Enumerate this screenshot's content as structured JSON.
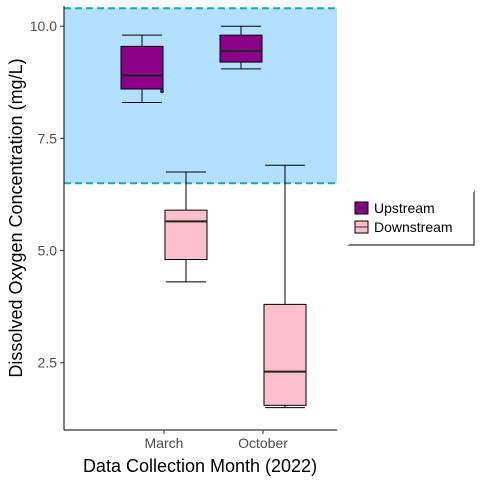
{
  "chart_data": {
    "type": "boxplot",
    "title": "",
    "xlabel": "Data Collection Month (2022)",
    "ylabel": "Dissolved Oxygen Concentration (mg/L)",
    "categories": [
      "March",
      "October"
    ],
    "ylim": [
      1.0,
      10.45
    ],
    "yticks": [
      2.5,
      5.0,
      7.5,
      10.0
    ],
    "ytick_labels": [
      "2.5",
      "5.0",
      "7.5",
      "10.0"
    ],
    "grid": false,
    "legend_position": "right",
    "reference_band": {
      "ymin": 6.5,
      "ymax": 10.4,
      "fill_color": "#b3e0ff",
      "line_color": "#17a6b8",
      "line_style": "dashed"
    },
    "series": [
      {
        "name": "Upstream",
        "color": "#8b008b",
        "boxes": [
          {
            "category": "March",
            "min": 8.3,
            "q1": 8.6,
            "median": 8.9,
            "q3": 9.55,
            "max": 9.8,
            "outliers": [
              8.55
            ]
          },
          {
            "category": "October",
            "min": 9.05,
            "q1": 9.2,
            "median": 9.45,
            "q3": 9.8,
            "max": 10.0,
            "outliers": []
          }
        ]
      },
      {
        "name": "Downstream",
        "color": "#ffc0cb",
        "boxes": [
          {
            "category": "March",
            "min": 4.3,
            "q1": 4.8,
            "median": 5.65,
            "q3": 5.9,
            "max": 6.75,
            "outliers": []
          },
          {
            "category": "October",
            "min": 1.5,
            "q1": 1.55,
            "median": 2.3,
            "q3": 3.8,
            "max": 6.9,
            "outliers": []
          }
        ]
      }
    ]
  }
}
